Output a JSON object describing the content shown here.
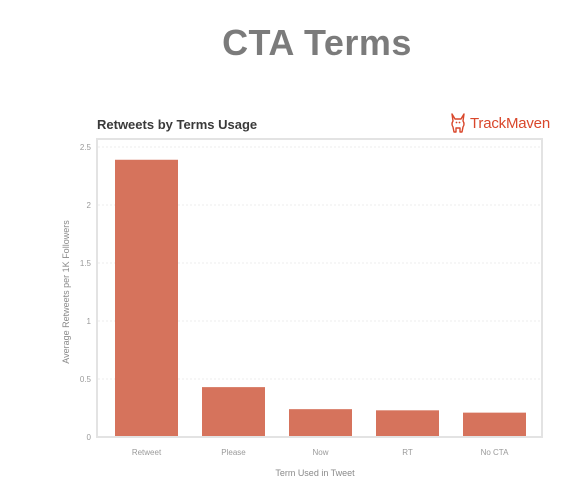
{
  "header": {
    "title": "CTA Terms"
  },
  "brand": {
    "name": "TrackMaven",
    "color": "#d9472b",
    "icon": "corgi-logo-icon"
  },
  "chart_data": {
    "type": "bar",
    "title": "Retweets by Terms Usage",
    "xlabel": "Term Used in Tweet",
    "ylabel": "Average Retweets per 1K Followers",
    "categories": [
      "Retweet",
      "Please",
      "Now",
      "RT",
      "No CTA"
    ],
    "values": [
      2.39,
      0.43,
      0.24,
      0.23,
      0.21
    ],
    "yticks": [
      "0",
      "0.5",
      "1",
      "1.5",
      "2",
      "2.5"
    ],
    "ylim": [
      0,
      2.5
    ],
    "grid": true,
    "bar_color": "#d6735c",
    "legend": "none"
  }
}
